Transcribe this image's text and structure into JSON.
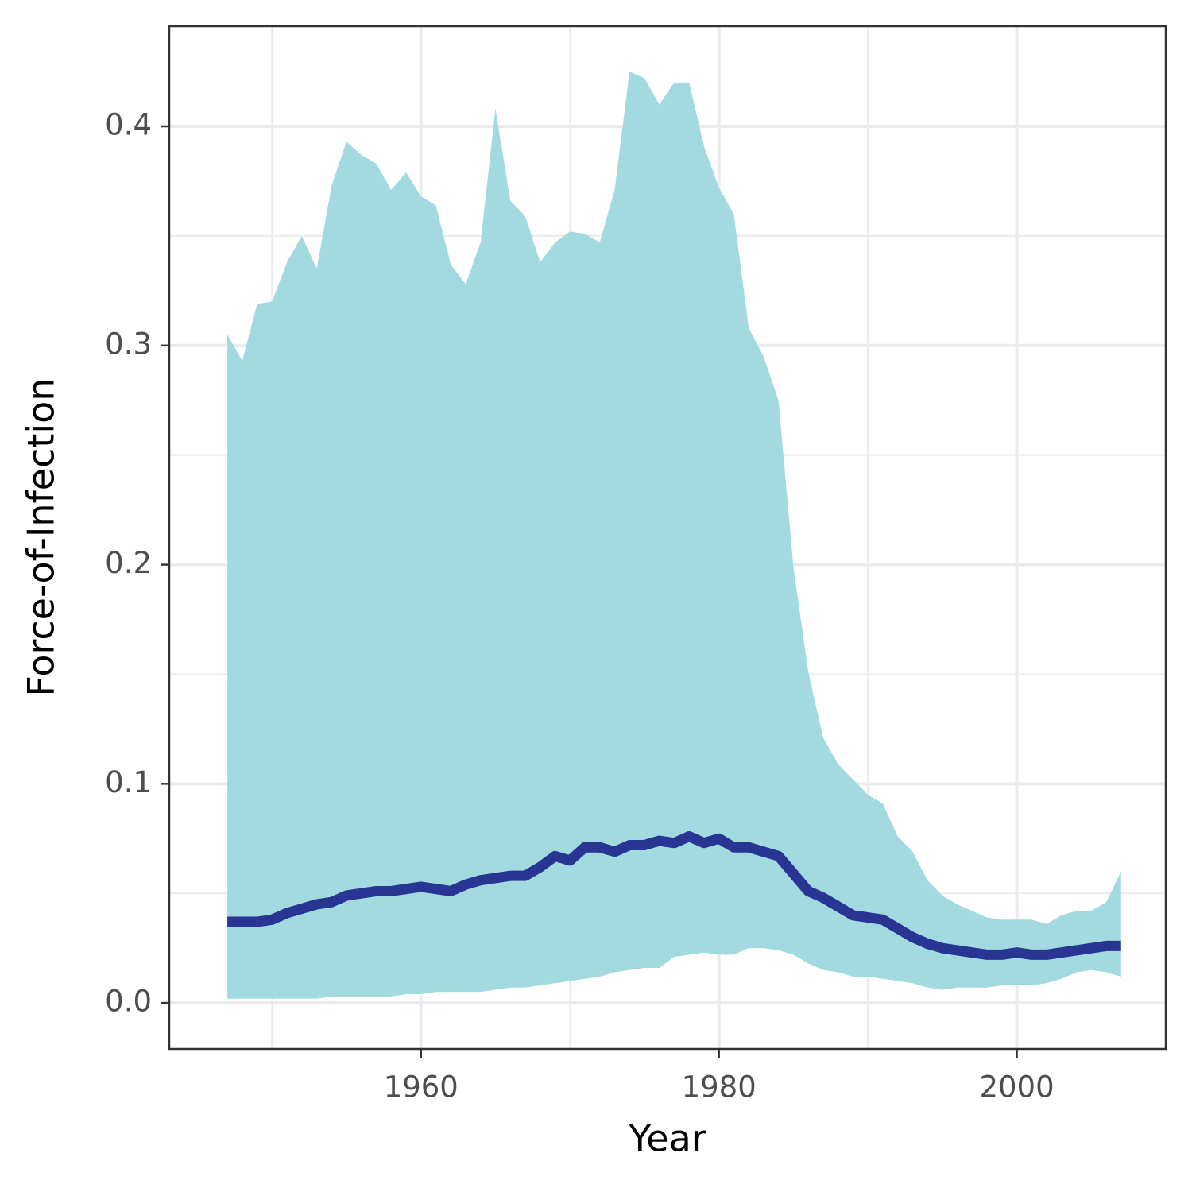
{
  "chart_data": {
    "type": "line",
    "x_label": "Year",
    "y_label": "Force-of-Infection",
    "x": [
      1947,
      1948,
      1949,
      1950,
      1951,
      1952,
      1953,
      1954,
      1955,
      1956,
      1957,
      1958,
      1959,
      1960,
      1961,
      1962,
      1963,
      1964,
      1965,
      1966,
      1967,
      1968,
      1969,
      1970,
      1971,
      1972,
      1973,
      1974,
      1975,
      1976,
      1977,
      1978,
      1979,
      1980,
      1981,
      1982,
      1983,
      1984,
      1985,
      1986,
      1987,
      1988,
      1989,
      1990,
      1991,
      1992,
      1993,
      1994,
      1995,
      1996,
      1997,
      1998,
      1999,
      2000,
      2001,
      2002,
      2003,
      2004,
      2005,
      2006,
      2007
    ],
    "series": [
      {
        "color": "#283593",
        "values": [
          0.037,
          0.037,
          0.037,
          0.038,
          0.041,
          0.043,
          0.045,
          0.046,
          0.049,
          0.05,
          0.051,
          0.051,
          0.052,
          0.053,
          0.052,
          0.051,
          0.054,
          0.056,
          0.057,
          0.058,
          0.058,
          0.062,
          0.067,
          0.065,
          0.071,
          0.071,
          0.069,
          0.072,
          0.072,
          0.074,
          0.073,
          0.076,
          0.073,
          0.075,
          0.071,
          0.071,
          0.069,
          0.067,
          0.059,
          0.051,
          0.048,
          0.044,
          0.04,
          0.039,
          0.038,
          0.034,
          0.03,
          0.027,
          0.025,
          0.024,
          0.023,
          0.022,
          0.022,
          0.023,
          0.022,
          0.022,
          0.023,
          0.024,
          0.025,
          0.026,
          0.026
        ]
      }
    ],
    "band": {
      "color": "#a2dae0",
      "upper": [
        0.305,
        0.293,
        0.319,
        0.32,
        0.338,
        0.35,
        0.335,
        0.373,
        0.393,
        0.387,
        0.383,
        0.371,
        0.379,
        0.368,
        0.364,
        0.337,
        0.328,
        0.347,
        0.408,
        0.366,
        0.359,
        0.338,
        0.347,
        0.352,
        0.351,
        0.347,
        0.371,
        0.425,
        0.422,
        0.41,
        0.42,
        0.42,
        0.391,
        0.372,
        0.36,
        0.308,
        0.295,
        0.275,
        0.199,
        0.151,
        0.121,
        0.109,
        0.102,
        0.095,
        0.091,
        0.076,
        0.069,
        0.056,
        0.049,
        0.045,
        0.042,
        0.039,
        0.038,
        0.038,
        0.038,
        0.036,
        0.04,
        0.042,
        0.042,
        0.046,
        0.06
      ],
      "lower": [
        0.002,
        0.002,
        0.002,
        0.002,
        0.002,
        0.002,
        0.002,
        0.003,
        0.003,
        0.003,
        0.003,
        0.003,
        0.004,
        0.004,
        0.005,
        0.005,
        0.005,
        0.005,
        0.006,
        0.007,
        0.007,
        0.008,
        0.009,
        0.01,
        0.011,
        0.012,
        0.014,
        0.015,
        0.016,
        0.016,
        0.021,
        0.022,
        0.023,
        0.022,
        0.022,
        0.025,
        0.025,
        0.024,
        0.022,
        0.018,
        0.015,
        0.014,
        0.012,
        0.012,
        0.011,
        0.01,
        0.009,
        0.007,
        0.006,
        0.007,
        0.007,
        0.007,
        0.008,
        0.008,
        0.008,
        0.009,
        0.011,
        0.014,
        0.015,
        0.014,
        0.012
      ]
    },
    "xlim": [
      1943.1,
      2010.0
    ],
    "ylim": [
      -0.021,
      0.4457
    ],
    "xticks": [
      1960,
      1980,
      2000
    ],
    "yticks": [
      {
        "value": 0,
        "label": "0.0"
      },
      0.1,
      0.2,
      0.3,
      0.4
    ],
    "minor_xticks": [
      1950,
      1970,
      1990
    ],
    "minor_yticks": [
      0.05,
      0.15,
      0.25,
      0.35
    ],
    "grid": true
  }
}
